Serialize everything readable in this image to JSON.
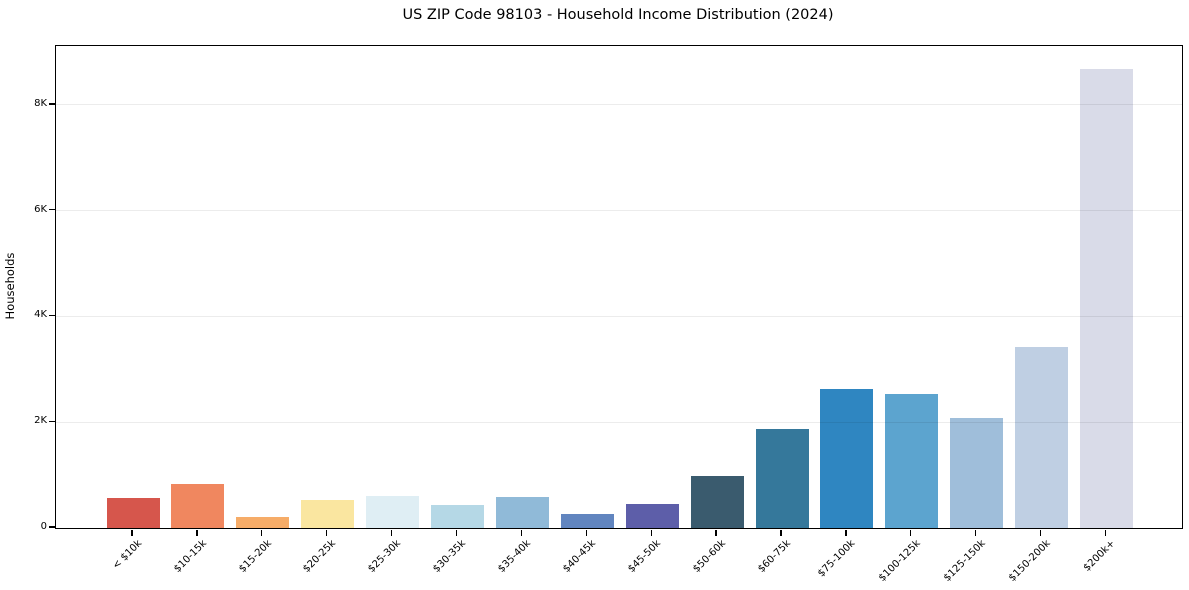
{
  "chart_data": {
    "type": "bar",
    "title": "US ZIP Code 98103 - Household Income Distribution (2024)",
    "xlabel": "",
    "ylabel": "Households",
    "categories": [
      "< $10k",
      "$10-15k",
      "$15-20k",
      "$20-25k",
      "$25-30k",
      "$30-35k",
      "$35-40k",
      "$40-45k",
      "$45-50k",
      "$50-60k",
      "$60-75k",
      "$75-100k",
      "$100-125k",
      "$125-150k",
      "$150-200k",
      "$200k+"
    ],
    "values": [
      570,
      840,
      200,
      530,
      610,
      440,
      580,
      270,
      460,
      980,
      1870,
      2620,
      2530,
      2080,
      3430,
      8680
    ],
    "bar_colors": [
      "#d6564c",
      "#f0875f",
      "#f6ac68",
      "#fae6a0",
      "#dfeef4",
      "#b5d8e6",
      "#90bad8",
      "#6185bf",
      "#5d5ea9",
      "#3a5b6e",
      "#35789b",
      "#2f86c1",
      "#5ca4cf",
      "#9fbeda",
      "#bfcfe3",
      "#d9dbe8"
    ],
    "ylim": [
      0,
      9112
    ],
    "yticks": [
      {
        "value": 0,
        "label": "0"
      },
      {
        "value": 2000,
        "label": "2K"
      },
      {
        "value": 4000,
        "label": "4K"
      },
      {
        "value": 6000,
        "label": "6K"
      },
      {
        "value": 8000,
        "label": "8K"
      }
    ],
    "grid": "horizontal",
    "legend": "none"
  },
  "colors": {
    "background": "#ffffff",
    "spine": "#000000",
    "grid": "#ececec",
    "text": "#000000"
  }
}
